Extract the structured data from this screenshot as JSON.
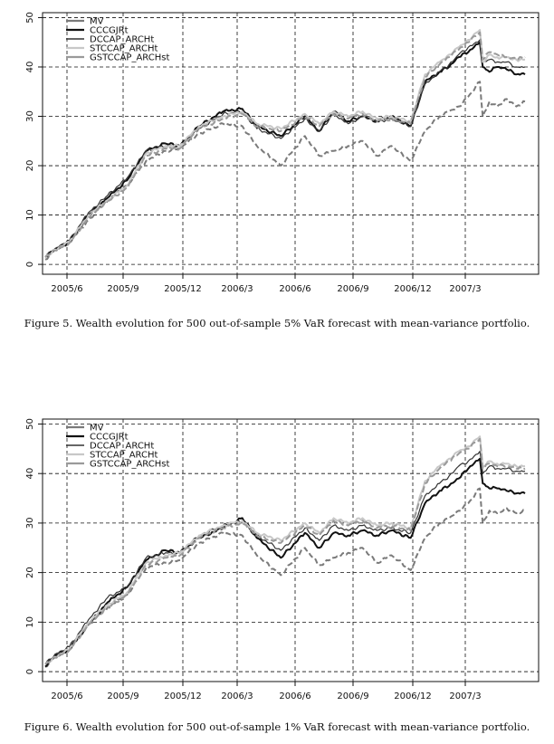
{
  "chart_data": [
    {
      "type": "line",
      "caption": "Figure 5.   Wealth evolution for 500 out-of-sample 5% VaR forecast with mean-variance portfolio.",
      "x_tick_labels": [
        "2005/6",
        "2005/9",
        "2005/12",
        "2006/3",
        "2006/6",
        "2006/9",
        "2006/12",
        "2007/3"
      ],
      "y_ticks": [
        0,
        10,
        20,
        30,
        40,
        50
      ],
      "ylim": [
        -2,
        51
      ],
      "grid": true,
      "legend_position": "top-left",
      "x_index": [
        0,
        10,
        25,
        45,
        65,
        85,
        105,
        125,
        140,
        160,
        185,
        205,
        220,
        245,
        270,
        285,
        300,
        315,
        330,
        345,
        360,
        380,
        395,
        410,
        420,
        430,
        440,
        452,
        455,
        462,
        470,
        480,
        490,
        499
      ],
      "series": [
        {
          "name": "MV",
          "color": "#7a7a7a",
          "dash": "6,3",
          "width": 2,
          "values": [
            1.0,
            3.0,
            4.5,
            9.0,
            13.0,
            16.0,
            21.0,
            23.0,
            23.5,
            26.5,
            28.5,
            28.0,
            24.0,
            20.0,
            26.0,
            22.0,
            23.0,
            24.0,
            25.0,
            22.0,
            24.0,
            21.0,
            27.0,
            30.0,
            31.0,
            32.0,
            34.0,
            37.0,
            30.0,
            33.0,
            32.0,
            33.5,
            32.0,
            33.0
          ]
        },
        {
          "name": "CCCGJRt",
          "color": "#111111",
          "dash": "",
          "width": 2,
          "values": [
            1.5,
            3.0,
            4.5,
            10.0,
            13.5,
            17.0,
            23.0,
            24.5,
            24.0,
            28.0,
            31.0,
            31.5,
            28.0,
            26.0,
            30.0,
            27.0,
            31.0,
            29.0,
            30.0,
            29.0,
            30.0,
            28.0,
            37.0,
            39.0,
            40.0,
            42.0,
            43.0,
            45.0,
            40.0,
            39.0,
            40.0,
            39.5,
            38.5,
            38.5
          ]
        },
        {
          "name": "DCCAP_ARCHt",
          "color": "#333333",
          "dash": "",
          "width": 1.2,
          "values": [
            1.5,
            3.2,
            4.8,
            10.5,
            14.0,
            17.5,
            23.0,
            24.0,
            24.0,
            27.5,
            30.5,
            31.0,
            27.5,
            25.5,
            29.5,
            27.0,
            30.5,
            28.5,
            30.0,
            29.0,
            29.5,
            28.0,
            36.5,
            39.0,
            40.5,
            42.5,
            44.0,
            45.5,
            41.0,
            41.5,
            41.0,
            41.0,
            40.0,
            40.0
          ]
        },
        {
          "name": "STCCAP_ARCHt",
          "color": "#c8c8c8",
          "dash": "",
          "width": 2,
          "values": [
            1.5,
            3.0,
            4.5,
            10.0,
            13.0,
            16.0,
            22.5,
            24.0,
            24.0,
            28.0,
            30.0,
            31.0,
            28.5,
            27.5,
            30.5,
            28.5,
            31.0,
            30.0,
            31.0,
            29.5,
            30.0,
            29.0,
            38.5,
            41.0,
            42.5,
            44.0,
            45.5,
            47.5,
            41.0,
            42.5,
            42.0,
            42.0,
            41.5,
            41.5
          ]
        },
        {
          "name": "GSTCCAP_ARCHst",
          "color": "#9a9a9a",
          "dash": "7,3",
          "width": 2,
          "values": [
            1.5,
            2.8,
            4.3,
            9.5,
            12.8,
            15.5,
            22.0,
            23.5,
            23.5,
            27.5,
            29.5,
            30.5,
            28.0,
            27.0,
            30.0,
            28.0,
            30.5,
            29.5,
            30.5,
            29.0,
            29.5,
            28.5,
            38.0,
            40.5,
            42.0,
            43.5,
            45.0,
            47.0,
            41.5,
            43.0,
            42.5,
            42.0,
            41.5,
            42.0
          ]
        }
      ]
    },
    {
      "type": "line",
      "caption": "Figure 6.   Wealth evolution for 500 out-of-sample 1% VaR forecast with mean-variance portfolio.",
      "x_tick_labels": [
        "2005/6",
        "2005/9",
        "2005/12",
        "2006/3",
        "2006/6",
        "2006/9",
        "2006/12",
        "2007/3"
      ],
      "y_ticks": [
        0,
        10,
        20,
        30,
        40,
        50
      ],
      "ylim": [
        -2,
        51
      ],
      "grid": true,
      "legend_position": "top-left",
      "x_index": [
        0,
        10,
        25,
        45,
        65,
        85,
        105,
        125,
        140,
        160,
        185,
        205,
        220,
        245,
        270,
        285,
        300,
        315,
        330,
        345,
        360,
        380,
        395,
        410,
        420,
        430,
        440,
        452,
        455,
        462,
        470,
        480,
        490,
        499
      ],
      "series": [
        {
          "name": "MV",
          "color": "#7a7a7a",
          "dash": "6,3",
          "width": 2,
          "values": [
            1.0,
            3.0,
            4.5,
            9.5,
            13.0,
            15.5,
            21.0,
            22.0,
            22.5,
            26.0,
            28.0,
            27.5,
            23.5,
            19.5,
            25.0,
            21.5,
            23.0,
            24.0,
            25.0,
            22.0,
            23.5,
            20.5,
            27.0,
            30.0,
            31.0,
            32.5,
            34.0,
            37.0,
            30.0,
            32.5,
            32.0,
            33.0,
            32.0,
            32.5
          ]
        },
        {
          "name": "CCCGJRt",
          "color": "#111111",
          "dash": "",
          "width": 2,
          "values": [
            1.0,
            3.2,
            4.5,
            9.5,
            14.0,
            17.0,
            22.5,
            24.5,
            24.0,
            27.0,
            29.0,
            31.0,
            27.0,
            23.0,
            28.0,
            25.0,
            28.0,
            27.5,
            28.5,
            27.5,
            28.5,
            27.0,
            34.0,
            36.5,
            37.5,
            39.0,
            41.0,
            43.0,
            38.0,
            37.0,
            37.0,
            36.5,
            36.0,
            36.0
          ]
        },
        {
          "name": "DCCAP_ARCHt",
          "color": "#333333",
          "dash": "",
          "width": 1.2,
          "values": [
            1.5,
            3.5,
            5.0,
            10.5,
            15.0,
            17.0,
            23.0,
            24.0,
            24.0,
            27.5,
            29.5,
            30.5,
            27.5,
            24.5,
            29.0,
            26.5,
            29.5,
            28.5,
            29.5,
            28.5,
            29.0,
            28.0,
            35.5,
            38.0,
            39.5,
            41.5,
            42.5,
            44.5,
            40.0,
            41.5,
            41.0,
            41.0,
            40.5,
            40.5
          ]
        },
        {
          "name": "STCCAP_ARCHt",
          "color": "#c8c8c8",
          "dash": "",
          "width": 2,
          "values": [
            1.5,
            3.0,
            4.5,
            10.0,
            13.5,
            16.0,
            22.0,
            23.5,
            24.0,
            27.5,
            29.5,
            30.5,
            28.0,
            26.5,
            30.0,
            28.0,
            31.0,
            30.0,
            31.0,
            29.5,
            30.0,
            29.0,
            38.5,
            41.5,
            43.0,
            44.5,
            45.5,
            47.5,
            41.5,
            42.5,
            42.0,
            42.0,
            41.5,
            41.5
          ]
        },
        {
          "name": "GSTCCAP_ARCHst",
          "color": "#9a9a9a",
          "dash": "7,3",
          "width": 2,
          "values": [
            1.5,
            2.8,
            4.3,
            9.5,
            13.0,
            15.5,
            21.5,
            23.0,
            23.5,
            27.0,
            29.0,
            30.0,
            27.5,
            26.0,
            29.5,
            27.5,
            30.5,
            29.5,
            30.5,
            29.0,
            29.5,
            28.5,
            38.0,
            41.0,
            42.5,
            44.0,
            45.0,
            47.0,
            41.0,
            42.0,
            41.5,
            41.5,
            41.0,
            41.0
          ]
        }
      ]
    }
  ],
  "legend_labels": [
    "MV",
    "CCCGJRt",
    "DCCAP_ARCHt",
    "STCCAP_ARCHt",
    "GSTCCAP_ARCHst"
  ]
}
